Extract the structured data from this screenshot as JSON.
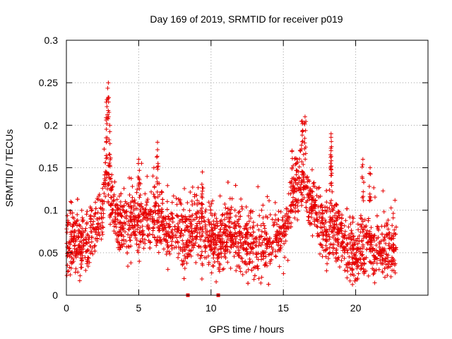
{
  "chart_data": {
    "type": "scatter",
    "title": "Day 169 of 2019, SRMTID for receiver p019",
    "xlabel": "GPS time / hours",
    "ylabel": "SRMTID / TECUs",
    "xlim": [
      0,
      25
    ],
    "ylim": [
      0,
      0.3
    ],
    "xticks": [
      0,
      5,
      10,
      15,
      20
    ],
    "xtick_labels": [
      "0",
      "5",
      "10",
      "15",
      "20"
    ],
    "yticks": [
      0,
      0.05,
      0.1,
      0.15,
      0.2,
      0.25,
      0.3
    ],
    "ytick_labels": [
      "0",
      "0.05",
      "0.1",
      "0.15",
      "0.2",
      "0.25",
      "0.3"
    ],
    "grid": true,
    "marker": "plus",
    "series_color": "#e60000",
    "data_coverage_hours": [
      0,
      22.8
    ],
    "trend_profile": {
      "x": [
        0.0,
        0.5,
        1.0,
        1.5,
        2.0,
        2.5,
        2.8,
        3.0,
        3.3,
        3.6,
        4.0,
        4.5,
        5.0,
        5.5,
        6.0,
        6.5,
        7.0,
        7.5,
        8.0,
        8.5,
        9.0,
        9.5,
        10.0,
        10.5,
        11.0,
        11.5,
        12.0,
        12.5,
        13.0,
        13.5,
        14.0,
        14.5,
        15.0,
        15.3,
        15.6,
        16.0,
        16.5,
        17.0,
        17.5,
        18.0,
        18.5,
        19.0,
        19.5,
        20.0,
        20.5,
        21.0,
        21.5,
        22.0,
        22.8
      ],
      "y": [
        0.06,
        0.065,
        0.055,
        0.07,
        0.08,
        0.095,
        0.15,
        0.12,
        0.1,
        0.09,
        0.085,
        0.08,
        0.085,
        0.09,
        0.1,
        0.085,
        0.075,
        0.075,
        0.07,
        0.075,
        0.08,
        0.075,
        0.065,
        0.06,
        0.07,
        0.075,
        0.065,
        0.06,
        0.055,
        0.055,
        0.065,
        0.07,
        0.075,
        0.09,
        0.12,
        0.13,
        0.13,
        0.11,
        0.085,
        0.075,
        0.08,
        0.065,
        0.055,
        0.05,
        0.055,
        0.06,
        0.055,
        0.055,
        0.055
      ]
    },
    "spread": 0.018,
    "spikes": [
      {
        "x": 2.8,
        "y": 0.23
      },
      {
        "x": 2.9,
        "y": 0.25
      },
      {
        "x": 3.0,
        "y": 0.2
      },
      {
        "x": 5.0,
        "y": 0.16
      },
      {
        "x": 6.3,
        "y": 0.18
      },
      {
        "x": 9.4,
        "y": 0.145
      },
      {
        "x": 15.6,
        "y": 0.17
      },
      {
        "x": 16.3,
        "y": 0.205
      },
      {
        "x": 16.5,
        "y": 0.21
      },
      {
        "x": 18.3,
        "y": 0.19
      },
      {
        "x": 18.3,
        "y": 0.17
      },
      {
        "x": 20.5,
        "y": 0.16
      },
      {
        "x": 21.0,
        "y": 0.15
      }
    ],
    "zero_values_x": [
      8.4,
      10.5
    ]
  }
}
